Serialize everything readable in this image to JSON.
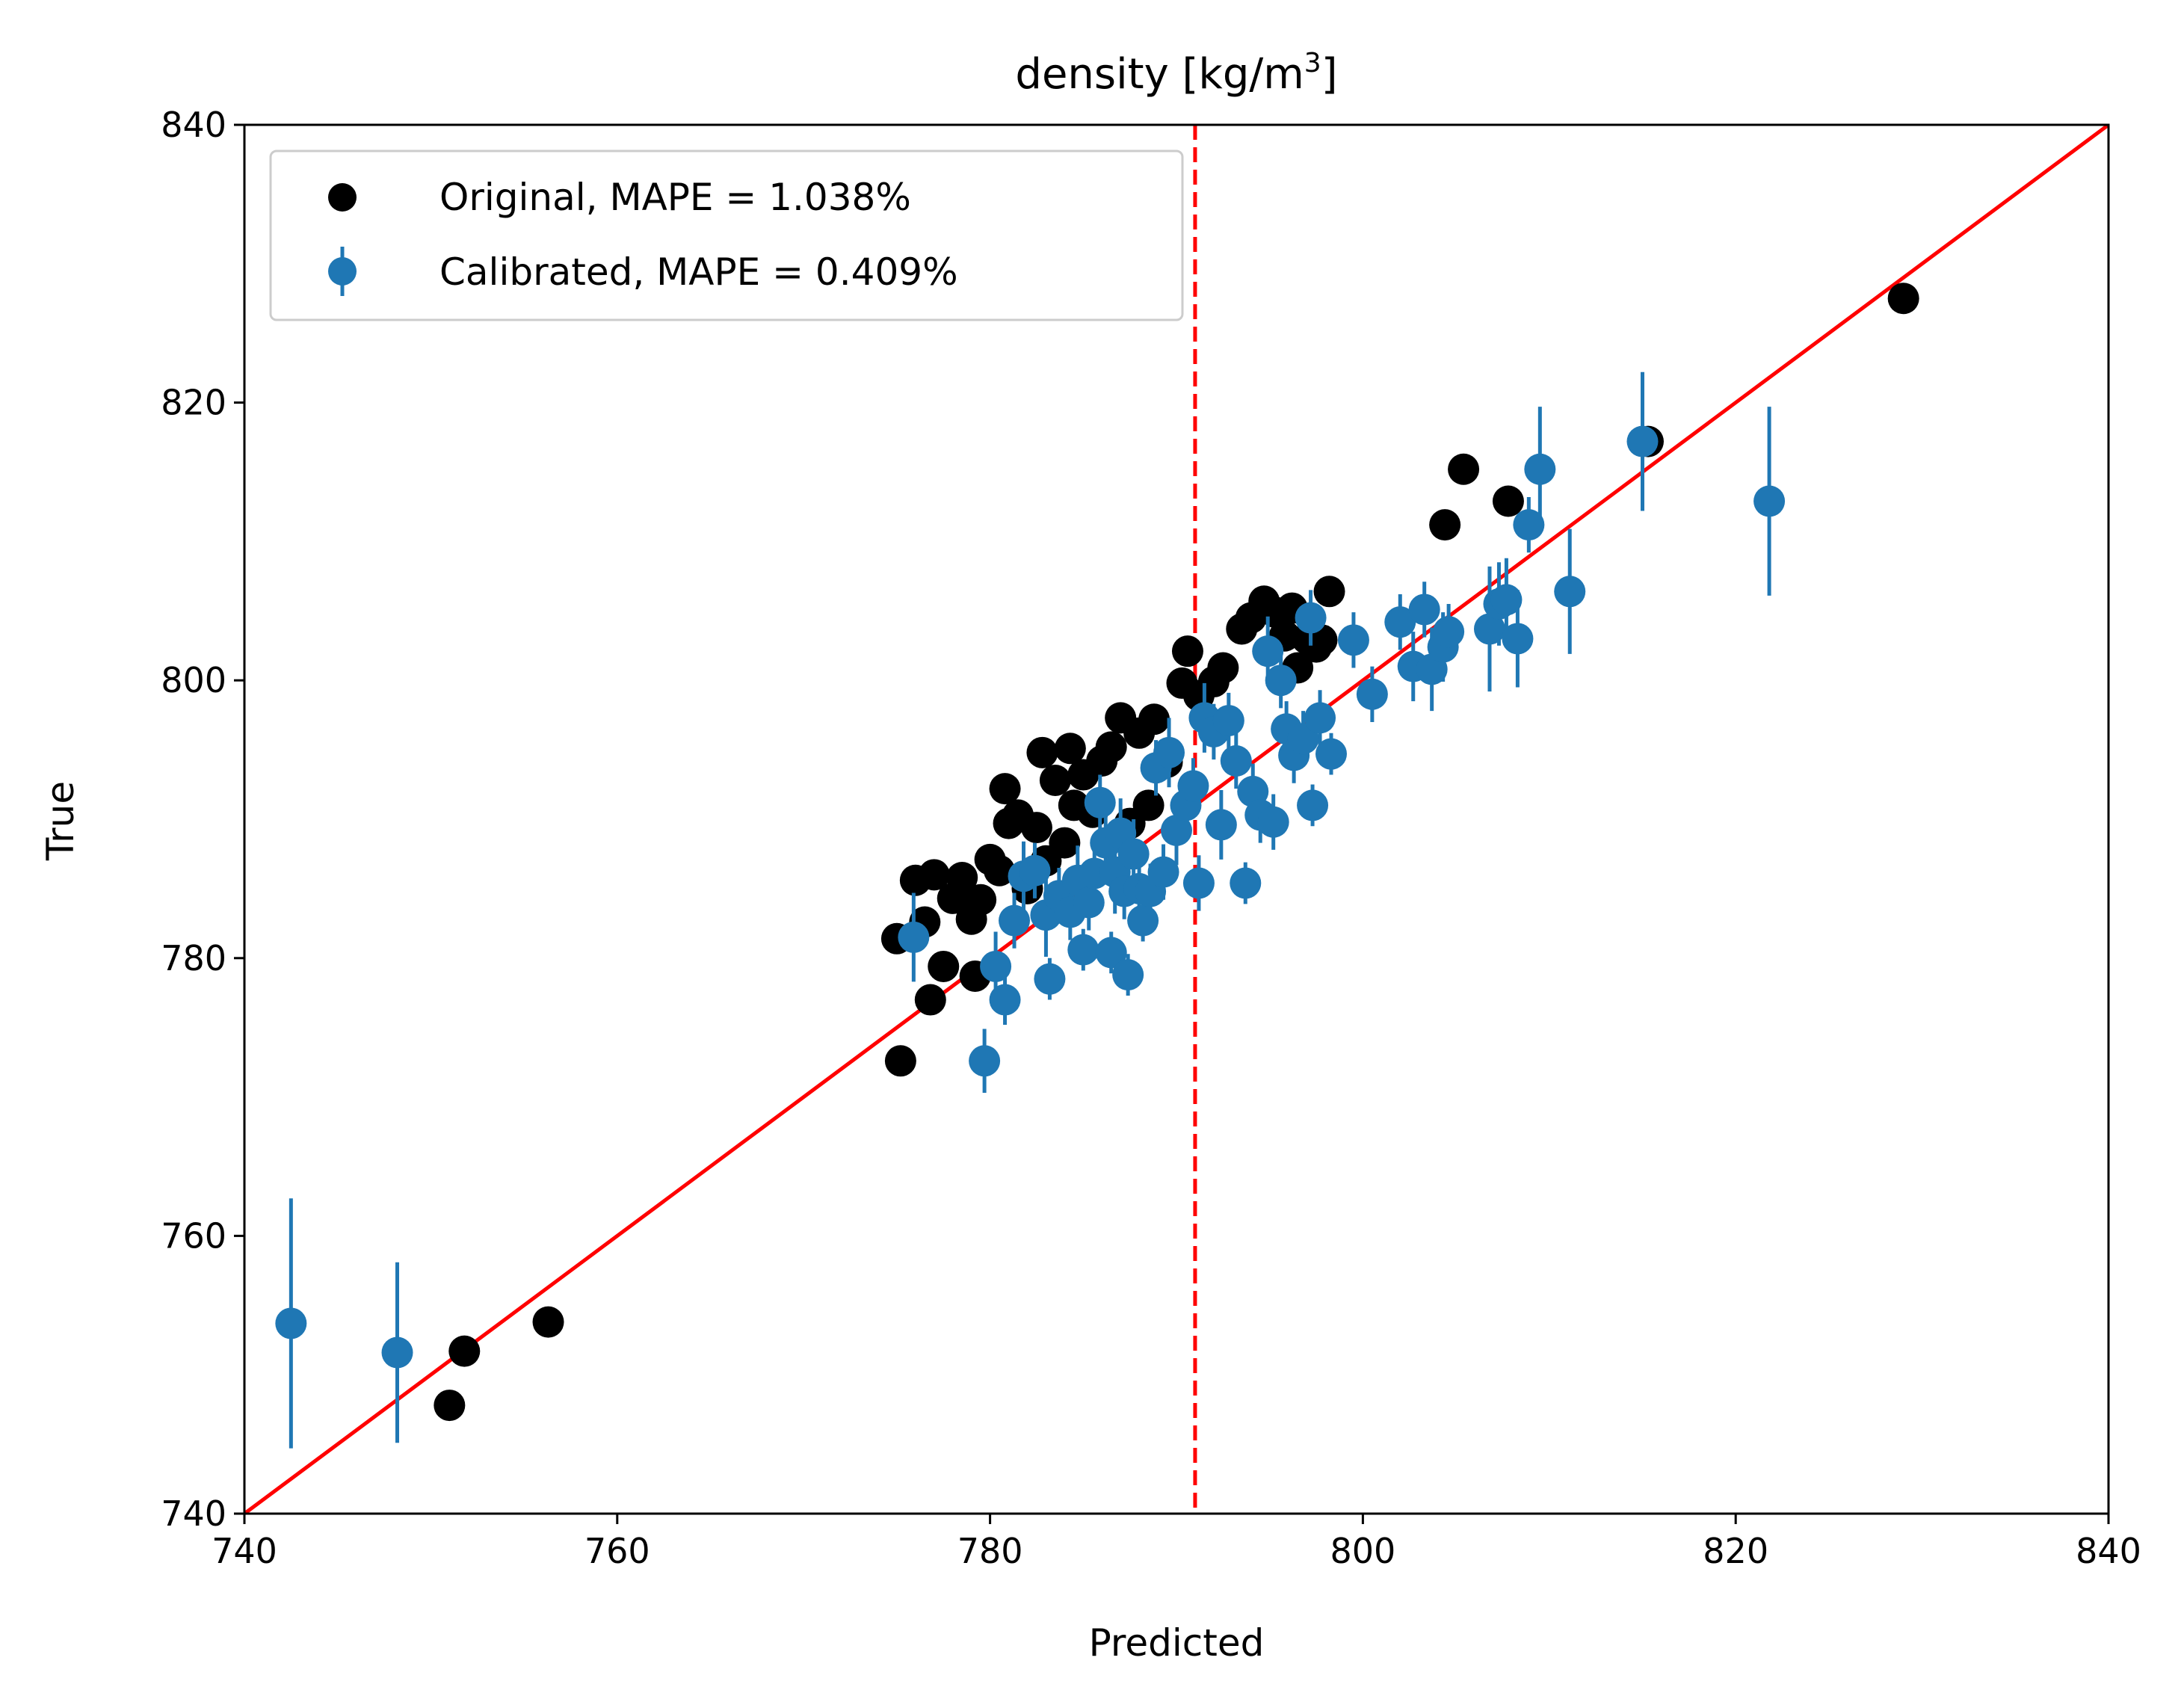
{
  "chart_data": {
    "type": "scatter",
    "title": "density [kg/m",
    "title_superscript": "3",
    "title_suffix": "]",
    "xlabel": "Predicted",
    "ylabel": "True",
    "xlim": [
      740,
      840
    ],
    "ylim": [
      740,
      840
    ],
    "xticks": [
      "740",
      "760",
      "780",
      "800",
      "820",
      "840"
    ],
    "yticks": [
      "740",
      "760",
      "780",
      "800",
      "820",
      "840"
    ],
    "grid": false,
    "legend_position": "top-left",
    "reference_line": {
      "type": "identity",
      "color": "#ff0000"
    },
    "threshold_line": {
      "x": 791,
      "color": "#ff0000",
      "style": "dashed"
    },
    "series": [
      {
        "name": "Original, MAPE = 1.038%",
        "color": "#000000",
        "marker": "circle",
        "points": [
          [
            751.0,
            747.8
          ],
          [
            751.8,
            751.7
          ],
          [
            756.3,
            753.8
          ],
          [
            775.0,
            781.4
          ],
          [
            775.2,
            772.6
          ],
          [
            776.0,
            785.6
          ],
          [
            776.5,
            782.6
          ],
          [
            776.8,
            777.0
          ],
          [
            777.0,
            786.0
          ],
          [
            777.5,
            779.4
          ],
          [
            778.0,
            784.3
          ],
          [
            778.5,
            785.8
          ],
          [
            779.0,
            782.8
          ],
          [
            779.2,
            778.7
          ],
          [
            779.5,
            784.2
          ],
          [
            780.0,
            787.1
          ],
          [
            780.5,
            786.3
          ],
          [
            780.8,
            792.2
          ],
          [
            781.0,
            789.7
          ],
          [
            781.5,
            790.3
          ],
          [
            782.0,
            785.0
          ],
          [
            782.5,
            789.4
          ],
          [
            782.8,
            794.8
          ],
          [
            783.0,
            787.0
          ],
          [
            783.5,
            792.8
          ],
          [
            784.0,
            788.3
          ],
          [
            784.3,
            795.1
          ],
          [
            784.5,
            791.0
          ],
          [
            785.0,
            793.2
          ],
          [
            785.5,
            790.5
          ],
          [
            786.0,
            794.2
          ],
          [
            786.5,
            795.2
          ],
          [
            787.0,
            797.3
          ],
          [
            787.5,
            789.7
          ],
          [
            788.0,
            796.2
          ],
          [
            788.5,
            791.0
          ],
          [
            788.8,
            797.2
          ],
          [
            789.5,
            794.1
          ],
          [
            790.3,
            799.8
          ],
          [
            790.6,
            802.1
          ],
          [
            791.2,
            798.9
          ],
          [
            792.0,
            799.9
          ],
          [
            792.5,
            800.9
          ],
          [
            793.5,
            803.7
          ],
          [
            794.0,
            804.5
          ],
          [
            794.7,
            805.7
          ],
          [
            795.3,
            804.9
          ],
          [
            795.8,
            803.2
          ],
          [
            796.2,
            805.2
          ],
          [
            796.5,
            800.9
          ],
          [
            797.0,
            803.0
          ],
          [
            797.5,
            802.4
          ],
          [
            797.8,
            802.9
          ],
          [
            798.2,
            806.4
          ],
          [
            804.4,
            811.2
          ],
          [
            805.4,
            815.2
          ],
          [
            807.8,
            812.9
          ],
          [
            815.3,
            817.2
          ],
          [
            829.0,
            827.5
          ]
        ]
      },
      {
        "name": "Calibrated, MAPE = 0.409%",
        "color": "#1f77b4",
        "marker": "circle",
        "errorbars": true,
        "points": [
          [
            742.5,
            753.7,
            9.0
          ],
          [
            748.2,
            751.6,
            6.5
          ],
          [
            775.9,
            781.5,
            3.2
          ],
          [
            779.7,
            772.6,
            2.3
          ],
          [
            780.3,
            779.4,
            2.5
          ],
          [
            780.8,
            777.0,
            1.8
          ],
          [
            781.3,
            782.7,
            2.0
          ],
          [
            781.8,
            785.9,
            2.5
          ],
          [
            782.4,
            786.3,
            2.0
          ],
          [
            783.0,
            783.1,
            3.0
          ],
          [
            783.2,
            778.5,
            1.5
          ],
          [
            783.7,
            784.5,
            2.0
          ],
          [
            784.3,
            783.3,
            2.0
          ],
          [
            784.7,
            785.6,
            2.5
          ],
          [
            785.0,
            780.6,
            1.5
          ],
          [
            785.3,
            784.0,
            2.0
          ],
          [
            785.6,
            786.1,
            2.5
          ],
          [
            785.9,
            791.2,
            2.0
          ],
          [
            786.2,
            788.3,
            2.0
          ],
          [
            786.5,
            780.4,
            1.5
          ],
          [
            786.7,
            786.2,
            3.0
          ],
          [
            787.0,
            789.0,
            2.5
          ],
          [
            787.2,
            784.8,
            2.0
          ],
          [
            787.4,
            778.8,
            1.5
          ],
          [
            787.7,
            787.5,
            2.5
          ],
          [
            788.0,
            785.0,
            2.0
          ],
          [
            788.2,
            782.7,
            1.5
          ],
          [
            788.6,
            784.8,
            2.0
          ],
          [
            788.9,
            793.7,
            2.0
          ],
          [
            789.3,
            786.2,
            2.0
          ],
          [
            789.6,
            794.8,
            2.5
          ],
          [
            790.0,
            789.2,
            2.5
          ],
          [
            790.5,
            791.0,
            2.0
          ],
          [
            790.9,
            792.4,
            2.0
          ],
          [
            791.2,
            785.4,
            2.0
          ],
          [
            791.5,
            797.3,
            2.5
          ],
          [
            792.0,
            796.3,
            2.0
          ],
          [
            792.4,
            789.6,
            2.5
          ],
          [
            792.8,
            797.1,
            2.0
          ],
          [
            793.2,
            794.2,
            2.0
          ],
          [
            793.7,
            785.4,
            1.5
          ],
          [
            794.1,
            792.0,
            2.0
          ],
          [
            794.5,
            790.3,
            2.0
          ],
          [
            794.9,
            802.1,
            2.5
          ],
          [
            795.2,
            789.8,
            2.0
          ],
          [
            795.6,
            800.0,
            2.0
          ],
          [
            795.9,
            796.5,
            2.0
          ],
          [
            796.3,
            794.6,
            2.0
          ],
          [
            796.8,
            795.8,
            2.0
          ],
          [
            797.2,
            804.5,
            2.0
          ],
          [
            797.3,
            791.0,
            1.5
          ],
          [
            797.7,
            797.3,
            2.0
          ],
          [
            798.3,
            794.7,
            1.5
          ],
          [
            799.5,
            802.9,
            2.0
          ],
          [
            800.5,
            799.0,
            2.0
          ],
          [
            802.0,
            804.2,
            2.0
          ],
          [
            802.7,
            801.0,
            2.5
          ],
          [
            803.3,
            805.1,
            2.0
          ],
          [
            803.7,
            800.8,
            3.0
          ],
          [
            804.3,
            802.4,
            2.5
          ],
          [
            804.6,
            803.5,
            2.0
          ],
          [
            806.8,
            803.7,
            4.5
          ],
          [
            807.3,
            805.5,
            3.0
          ],
          [
            807.7,
            805.8,
            3.0
          ],
          [
            808.3,
            803.0,
            3.5
          ],
          [
            808.9,
            811.2,
            2.0
          ],
          [
            809.5,
            815.2,
            4.5
          ],
          [
            811.1,
            806.4,
            4.5
          ],
          [
            815.0,
            817.2,
            5.0
          ],
          [
            821.8,
            812.9,
            6.8
          ]
        ]
      }
    ]
  }
}
